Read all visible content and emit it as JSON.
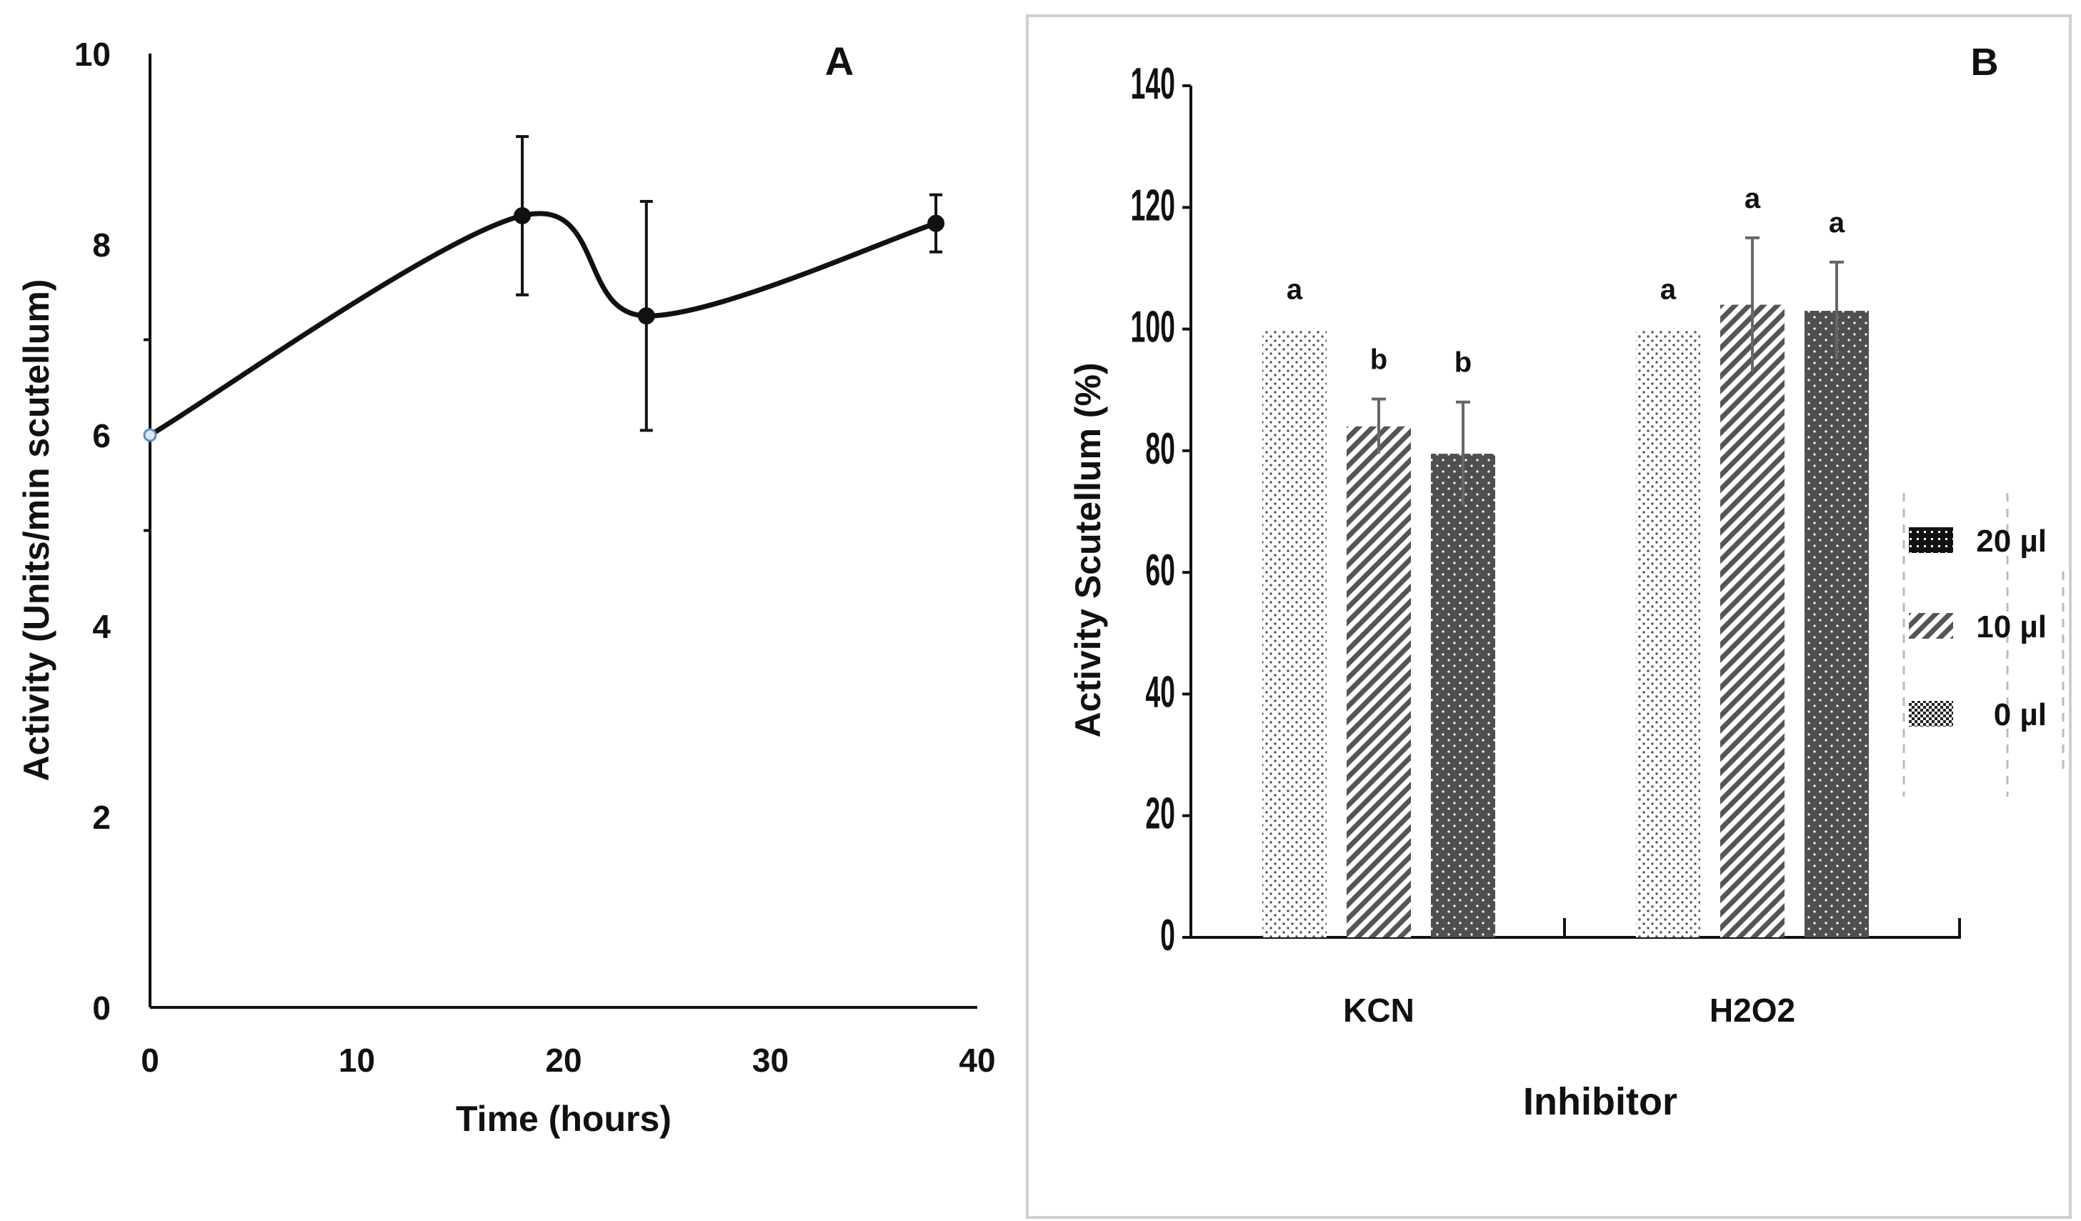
{
  "chart_data": [
    {
      "type": "line",
      "panel_letter": "A",
      "xlabel": "Time (hours)",
      "ylabel": "Activity (Units/min scutellum)",
      "xlim": [
        0,
        40
      ],
      "ylim": [
        0,
        10
      ],
      "xticks": [
        "0",
        "10",
        "20",
        "30",
        "40"
      ],
      "yticks": [
        "0",
        "2",
        "4",
        "6",
        "8",
        "10"
      ],
      "smooth": true,
      "series": [
        {
          "x": [
            0,
            18,
            24,
            38
          ],
          "y": [
            6.0,
            8.3,
            7.25,
            8.22
          ],
          "err": [
            0,
            0.83,
            1.2,
            0.3
          ]
        }
      ]
    },
    {
      "type": "bar",
      "panel_letter": "B",
      "xlabel": "Inhibitor",
      "ylabel": "Activity Scutellum  (%)",
      "ylim": [
        0,
        140
      ],
      "yticks": [
        "0",
        "20",
        "40",
        "60",
        "80",
        "100",
        "120",
        "140"
      ],
      "categories": [
        "KCN",
        "H2O2"
      ],
      "series": [
        {
          "name": "0 µl",
          "values": [
            100,
            100
          ],
          "err": [
            0,
            0
          ],
          "letters": [
            "a",
            "a"
          ]
        },
        {
          "name": "10 µl",
          "values": [
            84,
            104
          ],
          "err": [
            4.5,
            11
          ],
          "letters": [
            "b",
            "a"
          ]
        },
        {
          "name": "20 µl",
          "values": [
            79.5,
            103
          ],
          "err": [
            8.5,
            8
          ],
          "letters": [
            "b",
            "a"
          ]
        }
      ],
      "legend_position": "right",
      "legend_order": [
        "20 µl",
        "10 µl",
        "0 µl"
      ]
    }
  ]
}
